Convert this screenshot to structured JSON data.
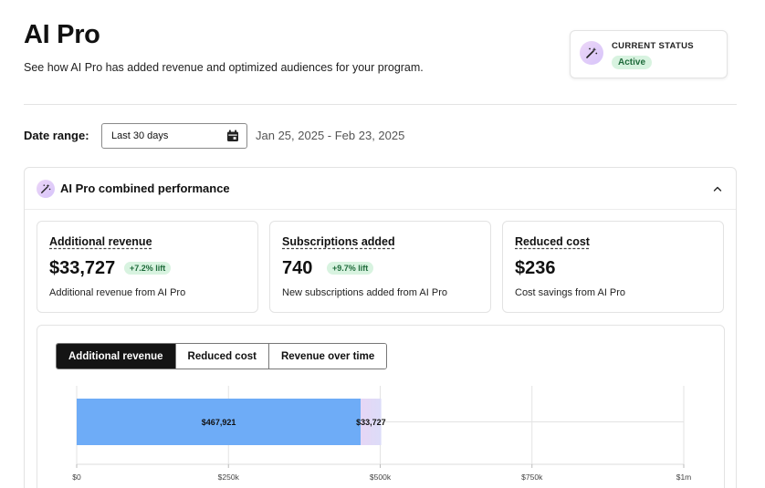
{
  "header": {
    "title": "AI Pro",
    "subtitle": "See how AI Pro has added revenue and optimized audiences for your program."
  },
  "status": {
    "label": "CURRENT STATUS",
    "badge": "Active"
  },
  "date_filter": {
    "label": "Date range:",
    "selected": "Last 30 days",
    "range_text": "Jan 25, 2025 - Feb 23, 2025"
  },
  "performance": {
    "title": "AI Pro combined performance",
    "metrics": [
      {
        "title": "Additional revenue",
        "value": "$33,727",
        "lift": "+7.2% lift",
        "description": "Additional revenue from AI Pro"
      },
      {
        "title": "Subscriptions added",
        "value": "740",
        "lift": "+9.7% lift",
        "description": "New subscriptions added from AI Pro"
      },
      {
        "title": "Reduced cost",
        "value": "$236",
        "lift": "",
        "description": "Cost savings from AI Pro"
      }
    ],
    "tabs": [
      {
        "label": "Additional revenue",
        "active": true
      },
      {
        "label": "Reduced cost",
        "active": false
      },
      {
        "label": "Revenue over time",
        "active": false
      }
    ]
  },
  "colors": {
    "baseline_bar": "#6eacf7",
    "ai_bar": "#e6d6f5",
    "ai_bar_right": "#dcdcf8",
    "lift_badge_bg": "#d8f3e0",
    "lift_badge_text": "#1f6b3b",
    "active_tab": "#141414"
  },
  "chart_data": {
    "type": "bar",
    "orientation": "horizontal",
    "stacked": true,
    "series": [
      {
        "values": [
          467921
        ]
      },
      {
        "values": [
          33727
        ]
      }
    ],
    "data_labels": [
      "$467,921",
      "$33,727"
    ],
    "xlim": [
      0,
      1000000
    ],
    "x_ticks": [
      0,
      250000,
      500000,
      750000,
      1000000
    ],
    "x_tick_labels": [
      "$0",
      "$250k",
      "$500k",
      "$750k",
      "$1m"
    ],
    "grid": true
  }
}
